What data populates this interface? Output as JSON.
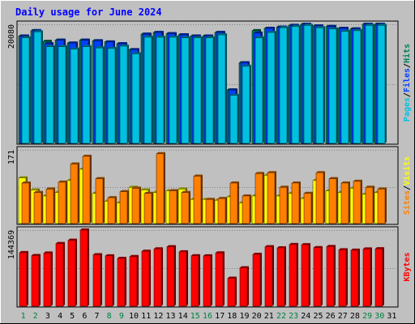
{
  "chart_data": {
    "type": "bar",
    "title": "Daily usage for June 2024",
    "days": [
      "1",
      "2",
      "3",
      "4",
      "5",
      "6",
      "7",
      "8",
      "9",
      "10",
      "11",
      "12",
      "13",
      "14",
      "15",
      "16",
      "17",
      "18",
      "19",
      "20",
      "21",
      "22",
      "23",
      "24",
      "25",
      "26",
      "27",
      "28",
      "29",
      "30",
      "31"
    ],
    "weekend_days": [
      "1",
      "2",
      "8",
      "9",
      "15",
      "16",
      "22",
      "23",
      "29",
      "30"
    ],
    "panels": [
      {
        "id": "hits",
        "max_label": "20080",
        "ymax": 20080,
        "axis_labels": [
          {
            "text": "Pages",
            "color": "#00C0E0"
          },
          {
            "text": "/",
            "color": "#000000"
          },
          {
            "text": "Files",
            "color": "#0040FF"
          },
          {
            "text": "/",
            "color": "#000000"
          },
          {
            "text": "Hits",
            "color": "#00805C"
          }
        ],
        "series": [
          {
            "name": "Hits",
            "color": "#00805C",
            "values": [
              18100,
              19000,
              17200,
              17400,
              16900,
              17400,
              17300,
              17100,
              16800,
              15800,
              18400,
              18700,
              18500,
              18300,
              18100,
              18100,
              18700,
              9000,
              13600,
              19000,
              19400,
              19600,
              19900,
              20080,
              19800,
              19700,
              19400,
              19300,
              20080,
              20080,
              null
            ]
          },
          {
            "name": "Files",
            "color": "#0040FF",
            "values": [
              18100,
              19000,
              16800,
              17400,
              16900,
              17400,
              17300,
              17100,
              16800,
              15800,
              18400,
              18700,
              18500,
              18300,
              18100,
              18100,
              18700,
              9000,
              13600,
              18600,
              19400,
              19600,
              19900,
              20080,
              19800,
              19700,
              19400,
              19300,
              20080,
              20080,
              null
            ]
          },
          {
            "name": "Pages",
            "color": "#00C0E0",
            "values": [
              17800,
              18800,
              16300,
              16300,
              15900,
              16300,
              16100,
              16000,
              16400,
              15100,
              17900,
              17900,
              17900,
              17800,
              17800,
              17800,
              18300,
              8100,
              13000,
              17800,
              18700,
              19500,
              19700,
              19900,
              19500,
              19300,
              18900,
              19000,
              19900,
              19900,
              null
            ]
          }
        ]
      },
      {
        "id": "visits",
        "max_label": "171",
        "ymax": 171,
        "axis_labels": [
          {
            "text": "Sites",
            "color": "#FF8000"
          },
          {
            "text": "/",
            "color": "#000000"
          },
          {
            "text": "Visits",
            "color": "#FFFF00"
          }
        ],
        "series": [
          {
            "name": "Visits",
            "color": "#FFFF00",
            "values": [
              106,
              78,
              64,
              72,
              100,
              126,
              70,
              52,
              48,
              84,
              78,
              72,
              76,
              80,
              56,
              56,
              54,
              62,
              48,
              64,
              112,
              64,
              70,
              58,
              100,
              76,
              72,
              82,
              68,
              72,
              null
            ]
          },
          {
            "name": "Sites",
            "color": "#FF8000",
            "values": [
              94,
              72,
              80,
              96,
              138,
              156,
              104,
              60,
              74,
              82,
              70,
              162,
              76,
              72,
              110,
              56,
              58,
              94,
              64,
              116,
              118,
              84,
              94,
              70,
              118,
              104,
              94,
              98,
              84,
              80,
              null
            ]
          }
        ]
      },
      {
        "id": "kbytes",
        "max_label": "144369",
        "ymax": 144369,
        "axis_labels": [
          {
            "text": "KBytes",
            "color": "#FF0000"
          }
        ],
        "series": [
          {
            "name": "KBytes",
            "color": "#FF0000",
            "values": [
              101500,
              96000,
              100800,
              118800,
              124900,
              144369,
              97500,
              95500,
              90600,
              94000,
              104100,
              108700,
              112700,
              103100,
              95600,
              95400,
              101000,
              52900,
              72800,
              98200,
              112600,
              110500,
              116900,
              116600,
              111000,
              113000,
              106900,
              106200,
              108400,
              108800,
              null
            ]
          }
        ]
      }
    ]
  }
}
